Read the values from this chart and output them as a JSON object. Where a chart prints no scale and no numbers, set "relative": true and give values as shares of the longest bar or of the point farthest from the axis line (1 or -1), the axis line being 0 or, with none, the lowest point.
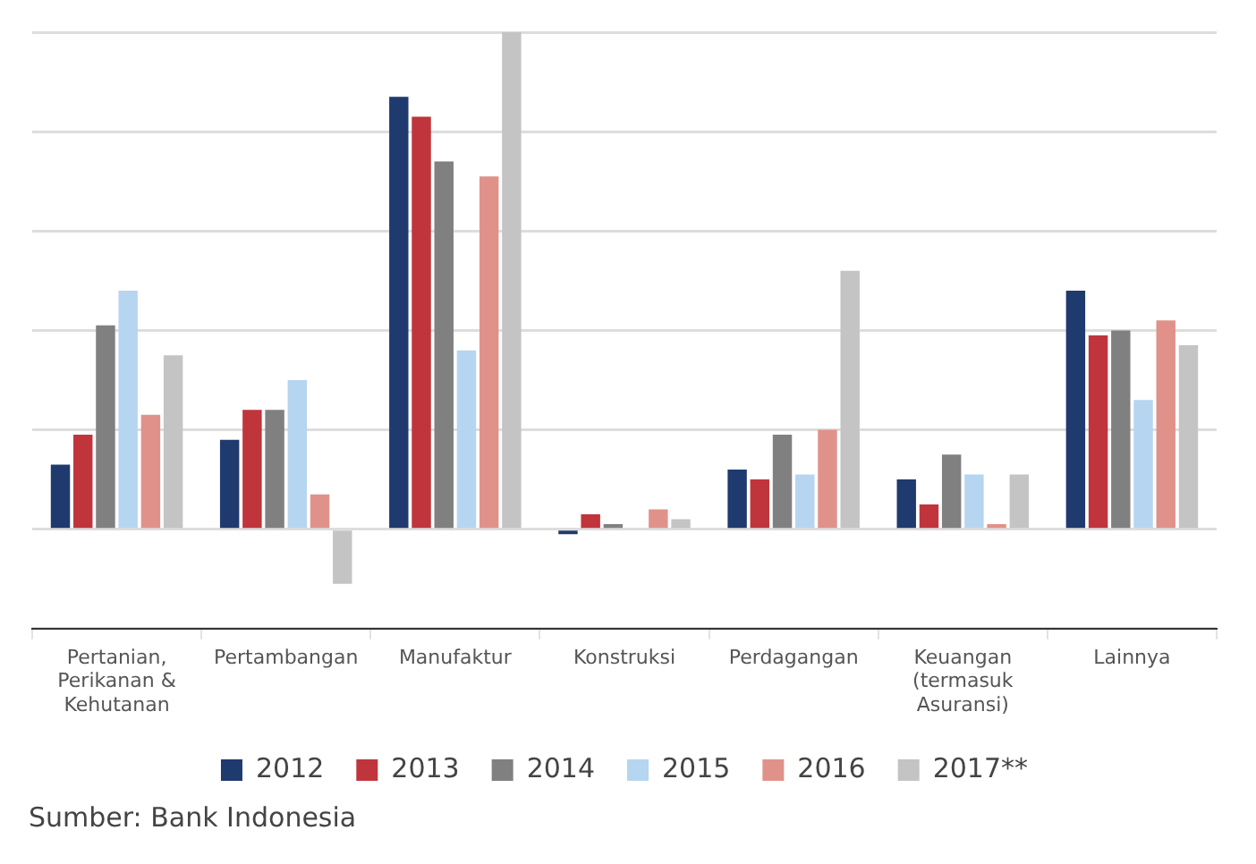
{
  "chart_data": {
    "type": "bar",
    "relative": true,
    "grid": "y",
    "legend": "bottom",
    "categories": [
      "Pertanian,\nPerikanan &\nKehutanan",
      "Pertambangan",
      "Manufaktur",
      "Konstruksi",
      "Perdagangan",
      "Keuangan\n(termasuk\nAsuransi)",
      "Lainnya"
    ],
    "series": [
      {
        "name": "2012",
        "color": "#1f3a6e",
        "values": [
          0.13,
          0.18,
          0.87,
          -0.01,
          0.12,
          0.1,
          0.48
        ]
      },
      {
        "name": "2013",
        "color": "#c0343c",
        "values": [
          0.19,
          0.24,
          0.83,
          0.03,
          0.1,
          0.05,
          0.39
        ]
      },
      {
        "name": "2014",
        "color": "#808080",
        "values": [
          0.41,
          0.24,
          0.74,
          0.01,
          0.19,
          0.15,
          0.4
        ]
      },
      {
        "name": "2015",
        "color": "#b6d5f0",
        "values": [
          0.48,
          0.3,
          0.36,
          0,
          0.11,
          0.11,
          0.26
        ]
      },
      {
        "name": "2016",
        "color": "#e0928a",
        "values": [
          0.23,
          0.07,
          0.71,
          0.04,
          0.2,
          0.01,
          0.42
        ]
      },
      {
        "name": "2017**",
        "color": "#c4c4c4",
        "values": [
          0.35,
          -0.11,
          1,
          0.02,
          0.52,
          0.11,
          0.37
        ]
      }
    ],
    "annotations": [
      "Sumber: Bank Indonesia"
    ]
  }
}
